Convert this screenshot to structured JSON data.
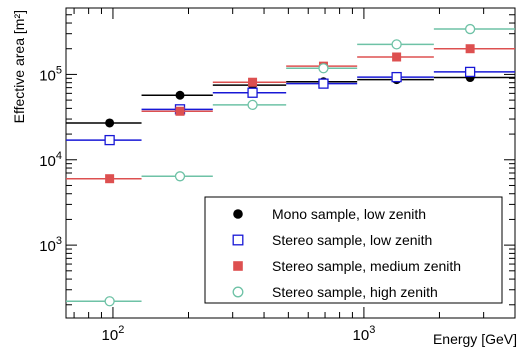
{
  "chart_data": {
    "type": "scatter",
    "title": "",
    "xlabel": "Energy [GeV]",
    "ylabel": "Effective area [m²]",
    "x_scale": "log",
    "y_scale": "log",
    "xlim": [
      65,
      4000
    ],
    "ylim": [
      140,
      600000
    ],
    "grid": false,
    "legend_position": "bottom-right",
    "x_tick_labels": [
      {
        "value": 100,
        "base": "10",
        "exp": "2"
      },
      {
        "value": 1000,
        "base": "10",
        "exp": "3"
      }
    ],
    "y_tick_labels": [
      {
        "value": 1000,
        "base": "10",
        "exp": "3"
      },
      {
        "value": 10000,
        "base": "10",
        "exp": "4"
      },
      {
        "value": 100000,
        "base": "10",
        "exp": "5"
      }
    ],
    "series": [
      {
        "name": "Mono sample, low zenith",
        "color": "#000000",
        "marker": "filled-circle",
        "points": [
          {
            "x": 97,
            "x_low": 65,
            "x_high": 130,
            "y": 27000
          },
          {
            "x": 185,
            "x_low": 130,
            "x_high": 250,
            "y": 57000
          },
          {
            "x": 360,
            "x_low": 250,
            "x_high": 490,
            "y": 75000
          },
          {
            "x": 690,
            "x_low": 490,
            "x_high": 940,
            "y": 82000
          },
          {
            "x": 1350,
            "x_low": 940,
            "x_high": 1900,
            "y": 87000
          },
          {
            "x": 2650,
            "x_low": 1900,
            "x_high": 4000,
            "y": 92000
          }
        ]
      },
      {
        "name": "Stereo sample, low zenith",
        "color": "#1818d6",
        "marker": "open-square",
        "points": [
          {
            "x": 97,
            "x_low": 65,
            "x_high": 130,
            "y": 17000
          },
          {
            "x": 185,
            "x_low": 130,
            "x_high": 250,
            "y": 39000
          },
          {
            "x": 360,
            "x_low": 250,
            "x_high": 490,
            "y": 61000
          },
          {
            "x": 690,
            "x_low": 490,
            "x_high": 940,
            "y": 78000
          },
          {
            "x": 1350,
            "x_low": 940,
            "x_high": 1900,
            "y": 93000
          },
          {
            "x": 2650,
            "x_low": 1900,
            "x_high": 4000,
            "y": 107000
          }
        ]
      },
      {
        "name": "Stereo sample, medium zenith",
        "color": "#dd5050",
        "marker": "filled-square",
        "points": [
          {
            "x": 97,
            "x_low": 65,
            "x_high": 130,
            "y": 6000
          },
          {
            "x": 185,
            "x_low": 130,
            "x_high": 250,
            "y": 37000
          },
          {
            "x": 360,
            "x_low": 250,
            "x_high": 490,
            "y": 81000
          },
          {
            "x": 690,
            "x_low": 490,
            "x_high": 940,
            "y": 125000
          },
          {
            "x": 1350,
            "x_low": 940,
            "x_high": 1900,
            "y": 160000
          },
          {
            "x": 2650,
            "x_low": 1900,
            "x_high": 4000,
            "y": 200000
          }
        ]
      },
      {
        "name": "Stereo sample, high zenith",
        "color": "#6ec2a6",
        "marker": "open-circle",
        "points": [
          {
            "x": 97,
            "x_low": 65,
            "x_high": 130,
            "y": 220
          },
          {
            "x": 185,
            "x_low": 130,
            "x_high": 250,
            "y": 6400
          },
          {
            "x": 360,
            "x_low": 250,
            "x_high": 490,
            "y": 44000
          },
          {
            "x": 690,
            "x_low": 490,
            "x_high": 940,
            "y": 118000
          },
          {
            "x": 1350,
            "x_low": 940,
            "x_high": 1900,
            "y": 225000
          },
          {
            "x": 2650,
            "x_low": 1900,
            "x_high": 4000,
            "y": 340000
          }
        ]
      }
    ]
  }
}
